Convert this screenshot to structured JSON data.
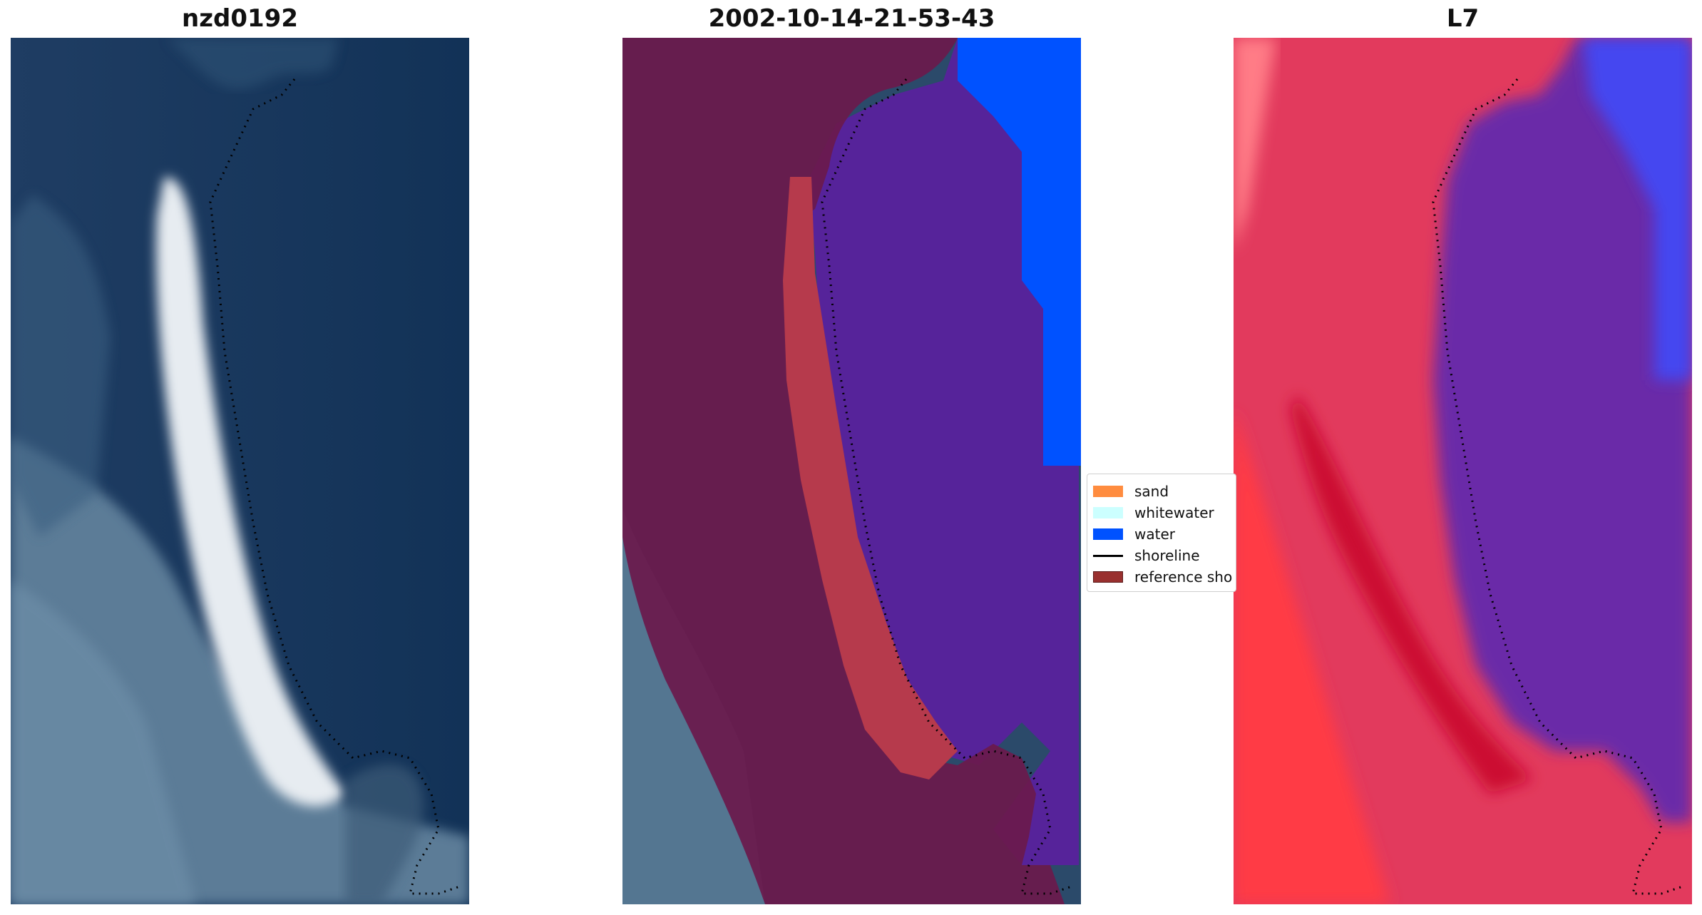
{
  "panels": [
    {
      "title": "nzd0192"
    },
    {
      "title": "2002-10-14-21-53-43"
    },
    {
      "title": "L7"
    }
  ],
  "legend": {
    "items": [
      {
        "label": "sand",
        "color": "#ff8c3f"
      },
      {
        "label": "whitewater",
        "color": "#ccffff"
      },
      {
        "label": "water",
        "color": "#0052ff"
      },
      {
        "label": "shoreline",
        "color": "#000000"
      },
      {
        "label": "reference sho",
        "color": "#99302f"
      }
    ]
  },
  "colors": {
    "rgb_deep_water": "#183a62",
    "rgb_land": "#5c7f9a",
    "rgb_beach": "#e9eef2",
    "class_buffer": "#6b1a4c",
    "class_water": "#56239a",
    "class_sand": "#b63a4c",
    "class_sea_water": "#0052ff",
    "index_land": "#e6294f",
    "index_water": "#6a2aa8",
    "index_sea": "#4447f0"
  }
}
